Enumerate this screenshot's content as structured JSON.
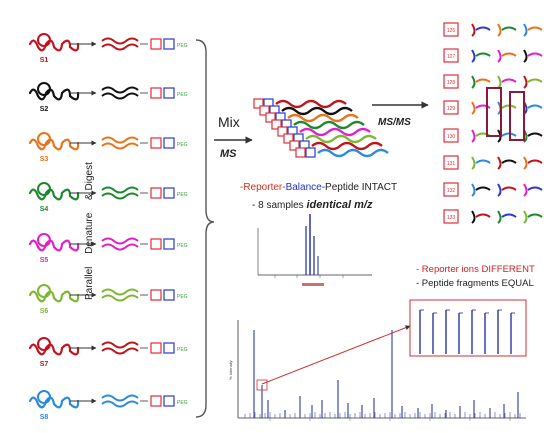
{
  "samples": [
    {
      "label": "S1",
      "color": "#c0141c"
    },
    {
      "label": "S2",
      "color": "#111111"
    },
    {
      "label": "S3",
      "color": "#e8731a"
    },
    {
      "label": "S4",
      "color": "#1c8a2c"
    },
    {
      "label": "S5",
      "color": "#e020c8"
    },
    {
      "label": "S6",
      "color": "#7cb832"
    },
    {
      "label": "S7",
      "color": "#c0141c"
    },
    {
      "label": "S8",
      "color": "#2a8ae0"
    }
  ],
  "tag_colors": {
    "reporter": "#e0303a",
    "balance": "#2a3acc",
    "peptide": "#3aa040"
  },
  "tag_text": {
    "reporter": "126",
    "balance": "",
    "peptide": "PEG"
  },
  "side_steps": [
    "Parallel",
    "Denature",
    "& Digest"
  ],
  "mix_label": "Mix",
  "ms_label": "MS",
  "msms_label": "MS/MS",
  "intact_line_parts": [
    "-Reporter-",
    "Balance",
    "-Peptide INTACT"
  ],
  "identical_prefix": "- 8 samples ",
  "identical_emph": "identical m/z",
  "reporter_diff": "- Reporter ions DIFFERENT",
  "peptide_equal": "- Peptide fragments EQUAL",
  "reporter_tags": [
    "126",
    "127",
    "128",
    "129",
    "130",
    "131",
    "132",
    "133"
  ]
}
